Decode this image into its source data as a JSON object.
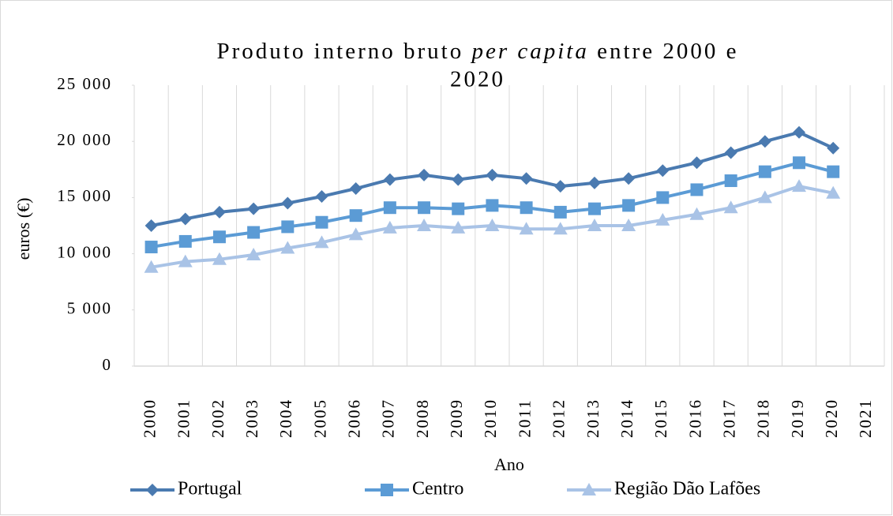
{
  "chart_data": {
    "type": "line",
    "title": [
      "Produto interno bruto",
      "per capita",
      "entre 2000 e",
      "2020"
    ],
    "x_label": "Ano",
    "y_label": "euros (€)",
    "categories": [
      "2000",
      "2001",
      "2002",
      "2003",
      "2004",
      "2005",
      "2006",
      "2007",
      "2008",
      "2009",
      "2010",
      "2011",
      "2012",
      "2013",
      "2014",
      "2015",
      "2016",
      "2017",
      "2018",
      "2019",
      "2020",
      "2021"
    ],
    "series": [
      {
        "name": "Portugal",
        "color": "#4a7ab0",
        "marker": "diamond",
        "values": [
          12500,
          13100,
          13700,
          14000,
          14500,
          15100,
          15800,
          16600,
          17000,
          16600,
          17000,
          16700,
          16000,
          16300,
          16700,
          17400,
          18100,
          19000,
          20000,
          20800,
          19400,
          null
        ]
      },
      {
        "name": "Centro",
        "color": "#5b9bd5",
        "marker": "square",
        "values": [
          10600,
          11100,
          11500,
          11900,
          12400,
          12800,
          13400,
          14100,
          14100,
          14000,
          14300,
          14100,
          13700,
          14000,
          14300,
          15000,
          15700,
          16500,
          17300,
          18100,
          17300,
          null
        ]
      },
      {
        "name": "Região Dão Lafões",
        "color": "#a9c3e6",
        "marker": "triangle",
        "values": [
          8800,
          9300,
          9500,
          9900,
          10500,
          11000,
          11700,
          12300,
          12500,
          12300,
          12500,
          12200,
          12200,
          12500,
          12500,
          13000,
          13500,
          14100,
          15000,
          16000,
          15400,
          null
        ]
      }
    ],
    "ylim": [
      0,
      25000
    ],
    "yticks": [
      0,
      {
        "value": 5000,
        "label": "5 000"
      },
      {
        "value": 10000,
        "label": "10 000"
      },
      {
        "value": 15000,
        "label": "15 000"
      },
      {
        "value": 20000,
        "label": "20 000"
      },
      {
        "value": 25000,
        "label": "25 000"
      }
    ],
    "grid": "vertical",
    "legend": "bottom"
  }
}
